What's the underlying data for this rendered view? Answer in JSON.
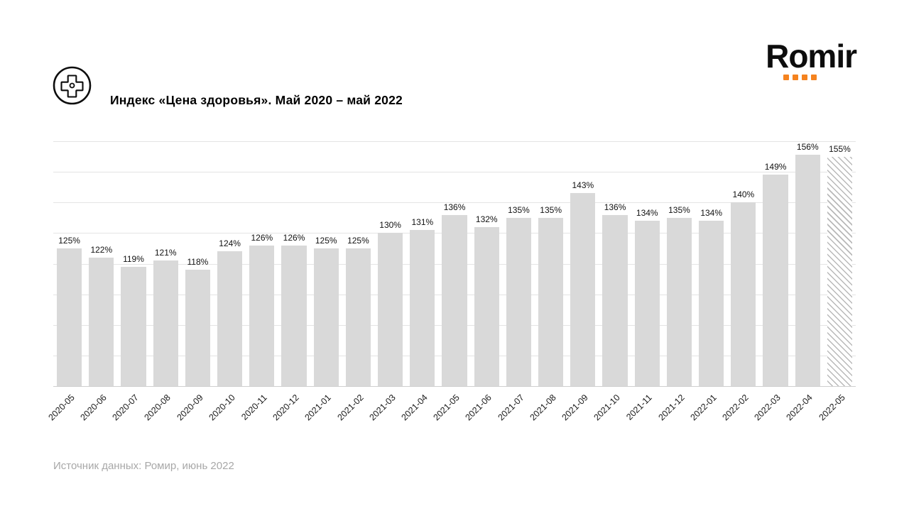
{
  "header": {
    "title": "Индекс «Цена здоровья». Май 2020 – май 2022",
    "icon": "health-cross-icon",
    "logo": {
      "text": "Romir",
      "dots": 4,
      "dot_color": "#f5831f"
    }
  },
  "chart_data": {
    "type": "bar",
    "title": "Индекс «Цена здоровья». Май 2020 – май 2022",
    "categories": [
      "2020-05",
      "2020-06",
      "2020-07",
      "2020-08",
      "2020-09",
      "2020-10",
      "2020-11",
      "2020-12",
      "2021-01",
      "2021-02",
      "2021-03",
      "2021-04",
      "2021-05",
      "2021-06",
      "2021-07",
      "2021-08",
      "2021-09",
      "2021-10",
      "2021-11",
      "2021-12",
      "2022-01",
      "2022-02",
      "2022-03",
      "2022-04",
      "2022-05"
    ],
    "values": [
      125,
      122,
      119,
      121,
      118,
      124,
      126,
      126,
      125,
      125,
      130,
      131,
      136,
      132,
      135,
      135,
      143,
      136,
      134,
      135,
      134,
      140,
      149,
      156,
      155
    ],
    "unit": "%",
    "ylim": [
      80,
      160
    ],
    "grid_step": 10,
    "grid": true,
    "legend": "none",
    "bar_color": "#d9d9d9",
    "last_bar_style": "hatched",
    "xlabel_rotation": -45
  },
  "footer": {
    "source": "Источник данных: Ромир, июнь 2022"
  }
}
